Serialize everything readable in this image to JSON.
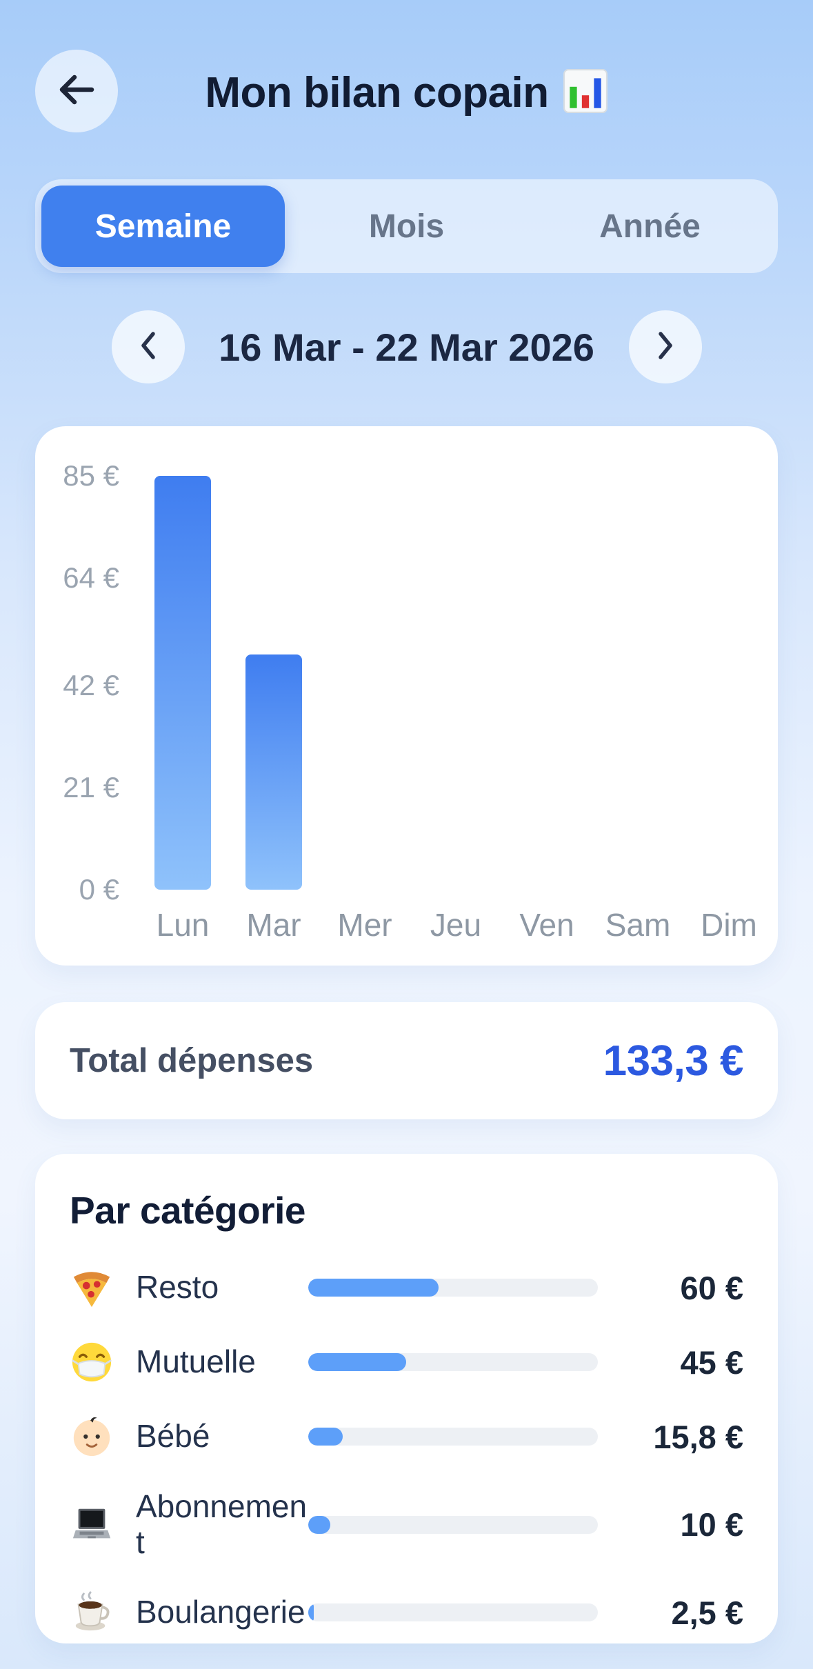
{
  "header": {
    "title": "Mon bilan copain",
    "title_icon": "bar-chart-emoji"
  },
  "tabs": {
    "items": [
      {
        "label": "Semaine",
        "selected": true
      },
      {
        "label": "Mois",
        "selected": false
      },
      {
        "label": "Année",
        "selected": false
      }
    ]
  },
  "period": {
    "label": "16 Mar - 22 Mar 2026"
  },
  "chart_data": {
    "type": "bar",
    "categories": [
      "Lun",
      "Mar",
      "Mer",
      "Jeu",
      "Ven",
      "Sam",
      "Dim"
    ],
    "values": [
      85,
      48.3,
      0,
      0,
      0,
      0,
      0
    ],
    "title": "",
    "xlabel": "",
    "ylabel": "",
    "unit": "€",
    "ylim": [
      0,
      85
    ],
    "grid": false,
    "legend": "none",
    "yticks": [
      {
        "value": 85,
        "label": "85 €"
      },
      {
        "value": 64,
        "label": "64 €"
      },
      {
        "value": 42,
        "label": "42 €"
      },
      {
        "value": 21,
        "label": "21 €"
      },
      {
        "value": 0,
        "label": "0 €"
      }
    ],
    "bar_gradient": [
      "#3f7df0",
      "#8fc2fb"
    ]
  },
  "total": {
    "label": "Total dépenses",
    "value": "133,3 €",
    "value_numeric": 133.3
  },
  "categories_section": {
    "title": "Par catégorie",
    "rows": [
      {
        "icon": "pizza-icon",
        "label": "Resto",
        "amount": "60 €",
        "value": 60
      },
      {
        "icon": "mask-face-icon",
        "label": "Mutuelle",
        "amount": "45 €",
        "value": 45
      },
      {
        "icon": "baby-icon",
        "label": "Bébé",
        "amount": "15,8 €",
        "value": 15.8
      },
      {
        "icon": "laptop-icon",
        "label": "Abonnement",
        "amount": "10 €",
        "value": 10
      },
      {
        "icon": "coffee-icon",
        "label": "Boulangerie",
        "amount": "2,5 €",
        "value": 2.5
      }
    ]
  },
  "colors": {
    "accent": "#4080ee",
    "total_value": "#2c59e0",
    "progress_fill": "#5d9ff9",
    "progress_track": "#edf0f4",
    "axis_label": "#9aa4b0"
  }
}
